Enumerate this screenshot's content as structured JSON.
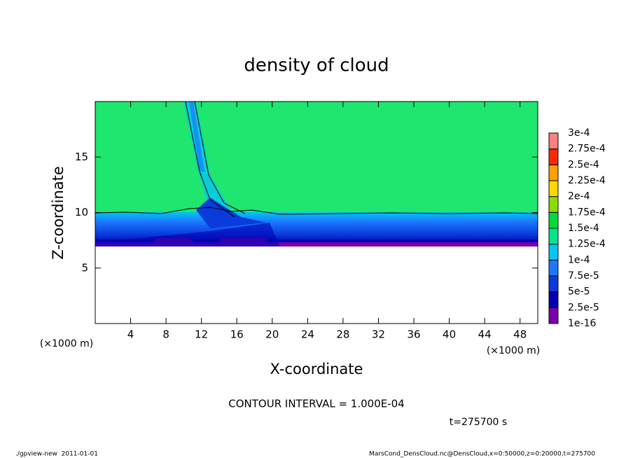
{
  "chart_data": {
    "type": "contour",
    "title": "density of cloud",
    "xlabel": "X-coordinate",
    "ylabel": "Z-coordinate",
    "x_unit_label": "(×1000 m)",
    "xlim": [
      0,
      50
    ],
    "ylim": [
      0,
      20
    ],
    "xticks": [
      4,
      8,
      12,
      16,
      20,
      24,
      28,
      32,
      36,
      40,
      44,
      48
    ],
    "yticks": [
      5,
      10,
      15
    ],
    "colorbar": {
      "levels": [
        {
          "value": 1e-16,
          "label": "1e-16"
        },
        {
          "value": 2.5e-05,
          "label": "2.5e-5"
        },
        {
          "value": 5e-05,
          "label": "5e-5"
        },
        {
          "value": 7.5e-05,
          "label": "7.5e-5"
        },
        {
          "value": 0.0001,
          "label": "1e-4"
        },
        {
          "value": 0.000125,
          "label": "1.25e-4"
        },
        {
          "value": 0.00015,
          "label": "1.5e-4"
        },
        {
          "value": 0.000175,
          "label": "1.75e-4"
        },
        {
          "value": 0.0002,
          "label": "2e-4"
        },
        {
          "value": 0.000225,
          "label": "2.25e-4"
        },
        {
          "value": 0.00025,
          "label": "2.5e-4"
        },
        {
          "value": 0.000275,
          "label": "2.75e-4"
        },
        {
          "value": 0.0003,
          "label": "3e-4"
        }
      ],
      "colors": [
        "#7a00aa",
        "#0000b4",
        "#0a3cdc",
        "#1e78ff",
        "#00c8f0",
        "#00e68c",
        "#00dc3c",
        "#8cdc00",
        "#ffd700",
        "#ffa000",
        "#ff2800",
        "#ff8080"
      ]
    },
    "contour_interval_text": "CONTOUR INTERVAL = 1.000E-04",
    "time_label": "t=275700 s"
  },
  "footer": {
    "left": "./gpview-new  2011-01-01",
    "right": "MarsCond_DensCloud.nc@DensCloud,x=0:50000,z=0:20000,t=275700"
  }
}
